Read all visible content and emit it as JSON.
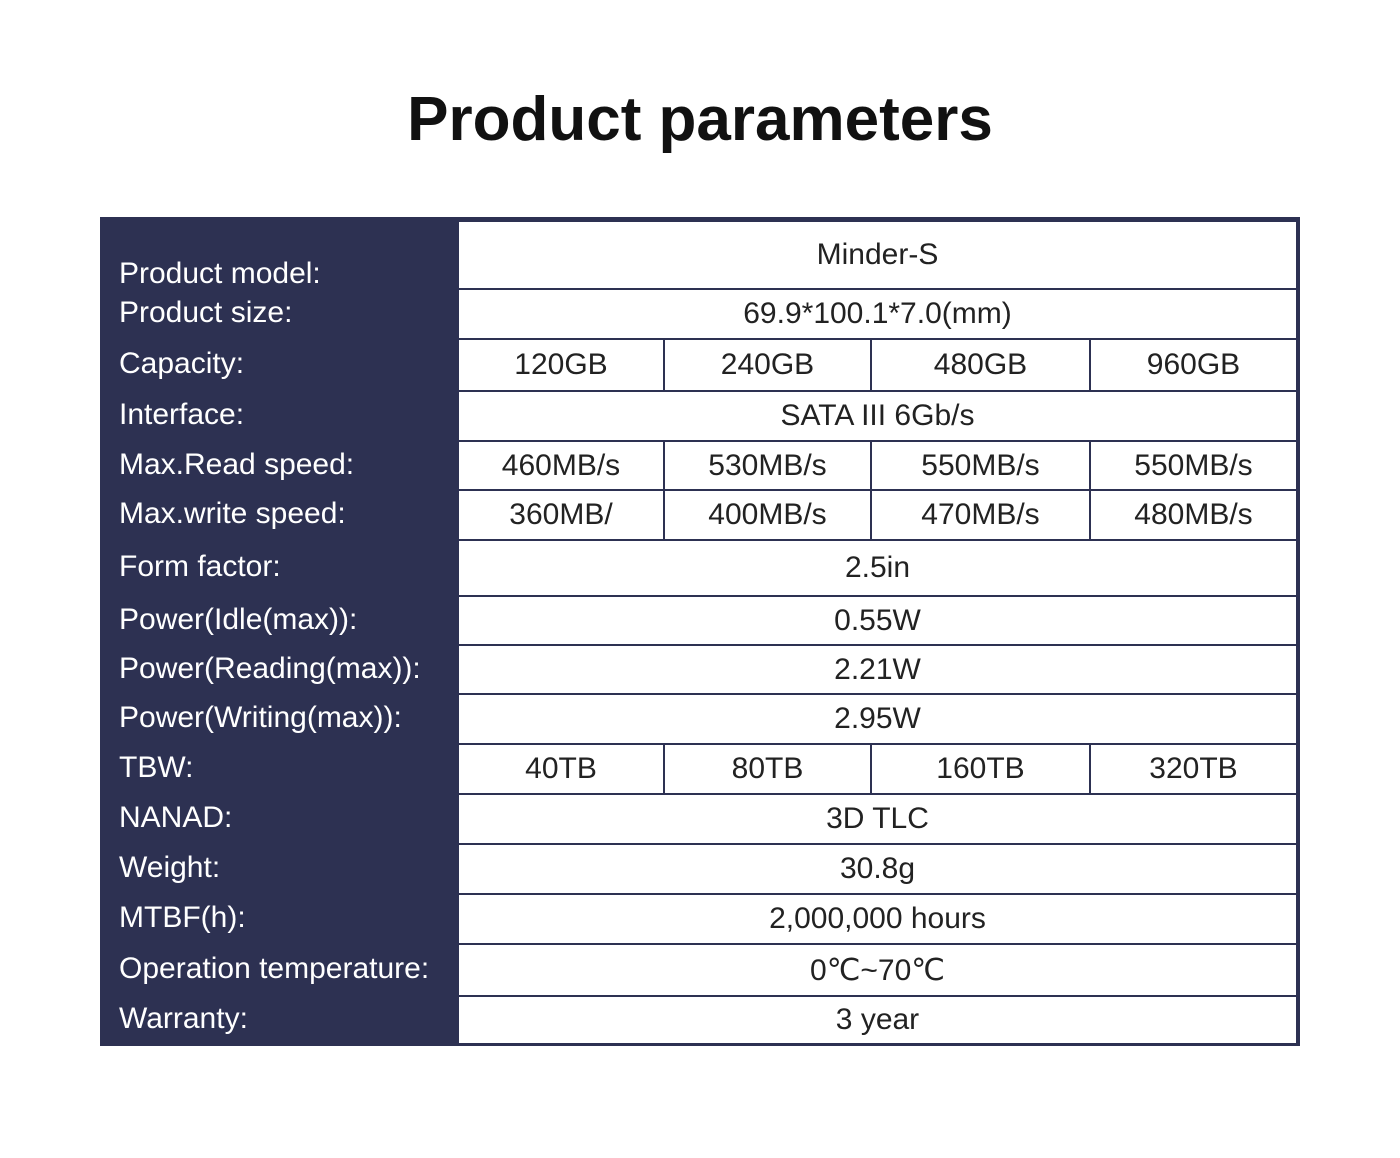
{
  "title": "Product parameters",
  "table": {
    "rows": [
      {
        "label": "Product model:",
        "values": [
          "Minder-S"
        ]
      },
      {
        "label": "Product size:",
        "values": [
          "69.9*100.1*7.0(mm)"
        ]
      },
      {
        "label": "Capacity:",
        "values": [
          "120GB",
          "240GB",
          "480GB",
          "960GB"
        ]
      },
      {
        "label": "Interface:",
        "values": [
          "SATA III 6Gb/s"
        ]
      },
      {
        "label": "Max.Read speed:",
        "values": [
          "460MB/s",
          "530MB/s",
          "550MB/s",
          "550MB/s"
        ]
      },
      {
        "label": "Max.write speed:",
        "values": [
          "360MB/",
          "400MB/s",
          "470MB/s",
          "480MB/s"
        ]
      },
      {
        "label": "Form factor:",
        "values": [
          "2.5in"
        ]
      },
      {
        "label": "Power(Idle(max)):",
        "values": [
          "0.55W"
        ]
      },
      {
        "label": "Power(Reading(max)):",
        "values": [
          "2.21W"
        ]
      },
      {
        "label": "Power(Writing(max)):",
        "values": [
          "2.95W"
        ]
      },
      {
        "label": "TBW:",
        "values": [
          "40TB",
          "80TB",
          "160TB",
          "320TB"
        ]
      },
      {
        "label": "NANAD:",
        "values": [
          "3D TLC"
        ]
      },
      {
        "label": "Weight:",
        "values": [
          "30.8g"
        ]
      },
      {
        "label": "MTBF(h):",
        "values": [
          "2,000,000 hours"
        ]
      },
      {
        "label": "Operation temperature:",
        "values": [
          "0℃~70℃"
        ]
      },
      {
        "label": "Warranty:",
        "values": [
          "3 year"
        ]
      }
    ]
  }
}
